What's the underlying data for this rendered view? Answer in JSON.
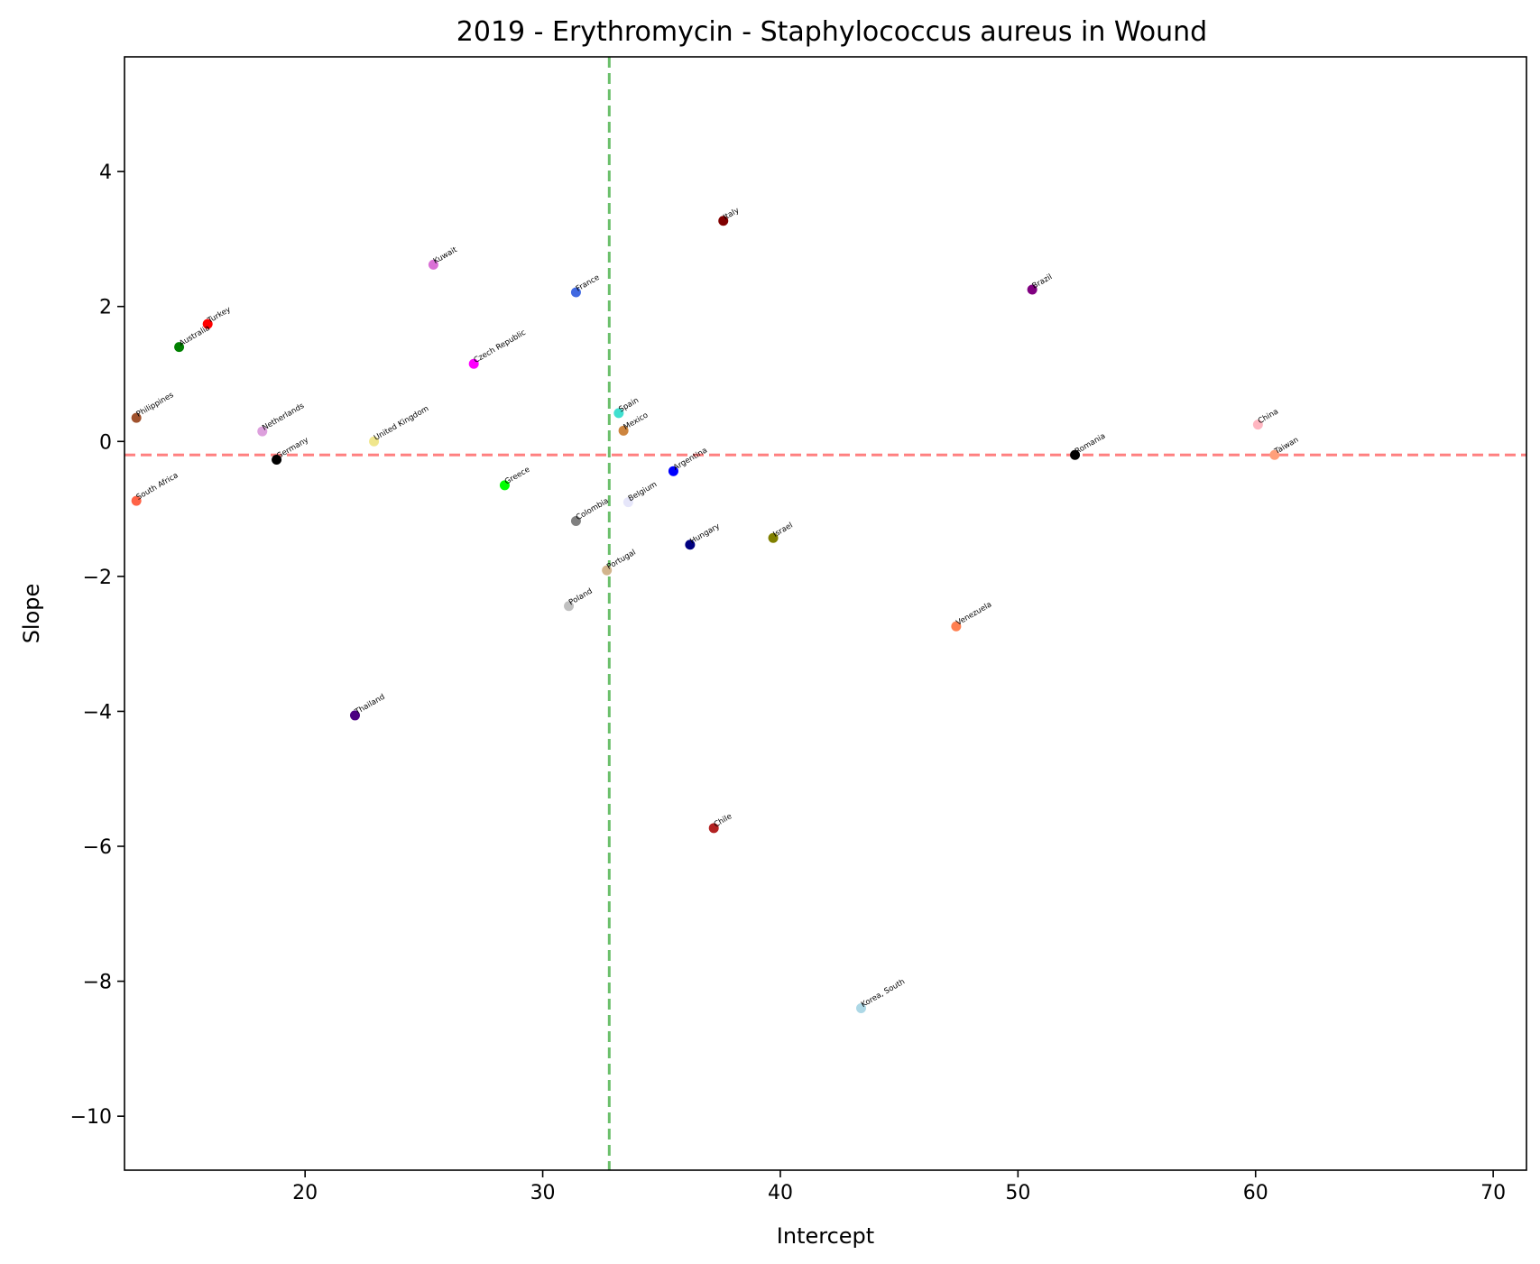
{
  "chart_data": {
    "type": "scatter",
    "title": "2019 - Erythromycin - Staphylococcus aureus in Wound",
    "xlabel": "Intercept",
    "ylabel": "Slope",
    "xlim": [
      12.4,
      71.4
    ],
    "ylim": [
      -10.8,
      5.7
    ],
    "xticks": [
      20,
      30,
      40,
      50,
      60,
      70
    ],
    "yticks": [
      4,
      2,
      0,
      -2,
      -4,
      -6,
      -8,
      -10
    ],
    "xtick_labels": [
      "20",
      "30",
      "40",
      "50",
      "60",
      "70"
    ],
    "ytick_labels": [
      "4",
      "2",
      "0",
      "−2",
      "−4",
      "−6",
      "−8",
      "−10"
    ],
    "grid": false,
    "reference_lines": [
      {
        "orientation": "vertical",
        "value": 32.8,
        "color": "#6abf6a",
        "style": "dashed"
      },
      {
        "orientation": "horizontal",
        "value": -0.2,
        "color": "#ff8080",
        "style": "dashed"
      }
    ],
    "points": [
      {
        "label": "Philippines",
        "x": 12.9,
        "y": 0.35,
        "color": "#a0522d"
      },
      {
        "label": "South Africa",
        "x": 12.9,
        "y": -0.88,
        "color": "#ff6347"
      },
      {
        "label": "Australia",
        "x": 14.7,
        "y": 1.4,
        "color": "#008000"
      },
      {
        "label": "Turkey",
        "x": 15.9,
        "y": 1.74,
        "color": "#ff0000"
      },
      {
        "label": "Netherlands",
        "x": 18.2,
        "y": 0.15,
        "color": "#dda0dd"
      },
      {
        "label": "Germany",
        "x": 18.8,
        "y": -0.27,
        "color": "#000000"
      },
      {
        "label": "Thailand",
        "x": 22.1,
        "y": -4.06,
        "color": "#4b0082"
      },
      {
        "label": "United Kingdom",
        "x": 22.9,
        "y": 0.0,
        "color": "#f0e68c"
      },
      {
        "label": "Kuwait",
        "x": 25.4,
        "y": 2.62,
        "color": "#da70d6"
      },
      {
        "label": "Czech Republic",
        "x": 27.1,
        "y": 1.15,
        "color": "#ff00ff"
      },
      {
        "label": "Greece",
        "x": 28.4,
        "y": -0.65,
        "color": "#00ff00"
      },
      {
        "label": "Poland",
        "x": 31.1,
        "y": -2.44,
        "color": "#c0c0c0"
      },
      {
        "label": "France",
        "x": 31.4,
        "y": 2.21,
        "color": "#4169e1"
      },
      {
        "label": "Colombia",
        "x": 31.4,
        "y": -1.18,
        "color": "#808080"
      },
      {
        "label": "Portugal",
        "x": 32.7,
        "y": -1.91,
        "color": "#d2b48c"
      },
      {
        "label": "Spain",
        "x": 33.2,
        "y": 0.42,
        "color": "#40e0d0"
      },
      {
        "label": "Mexico",
        "x": 33.4,
        "y": 0.16,
        "color": "#cd853f"
      },
      {
        "label": "Belgium",
        "x": 33.6,
        "y": -0.9,
        "color": "#e6e6fa"
      },
      {
        "label": "Argentina",
        "x": 35.5,
        "y": -0.44,
        "color": "#0000ff"
      },
      {
        "label": "Hungary",
        "x": 36.2,
        "y": -1.53,
        "color": "#000080"
      },
      {
        "label": "Chile",
        "x": 37.2,
        "y": -5.73,
        "color": "#b22222"
      },
      {
        "label": "Italy",
        "x": 37.6,
        "y": 3.27,
        "color": "#800000"
      },
      {
        "label": "Israel",
        "x": 39.7,
        "y": -1.43,
        "color": "#808000"
      },
      {
        "label": "Korea, South",
        "x": 43.4,
        "y": -8.4,
        "color": "#add8e6"
      },
      {
        "label": "Venezuela",
        "x": 47.4,
        "y": -2.74,
        "color": "#ff7f50"
      },
      {
        "label": "Brazil",
        "x": 50.6,
        "y": 2.25,
        "color": "#800080"
      },
      {
        "label": "Romania",
        "x": 52.4,
        "y": -0.2,
        "color": "#000000"
      },
      {
        "label": "China",
        "x": 60.1,
        "y": 0.25,
        "color": "#ffb6c1"
      },
      {
        "label": "Taiwan",
        "x": 60.8,
        "y": -0.2,
        "color": "#ffa07a"
      }
    ]
  }
}
